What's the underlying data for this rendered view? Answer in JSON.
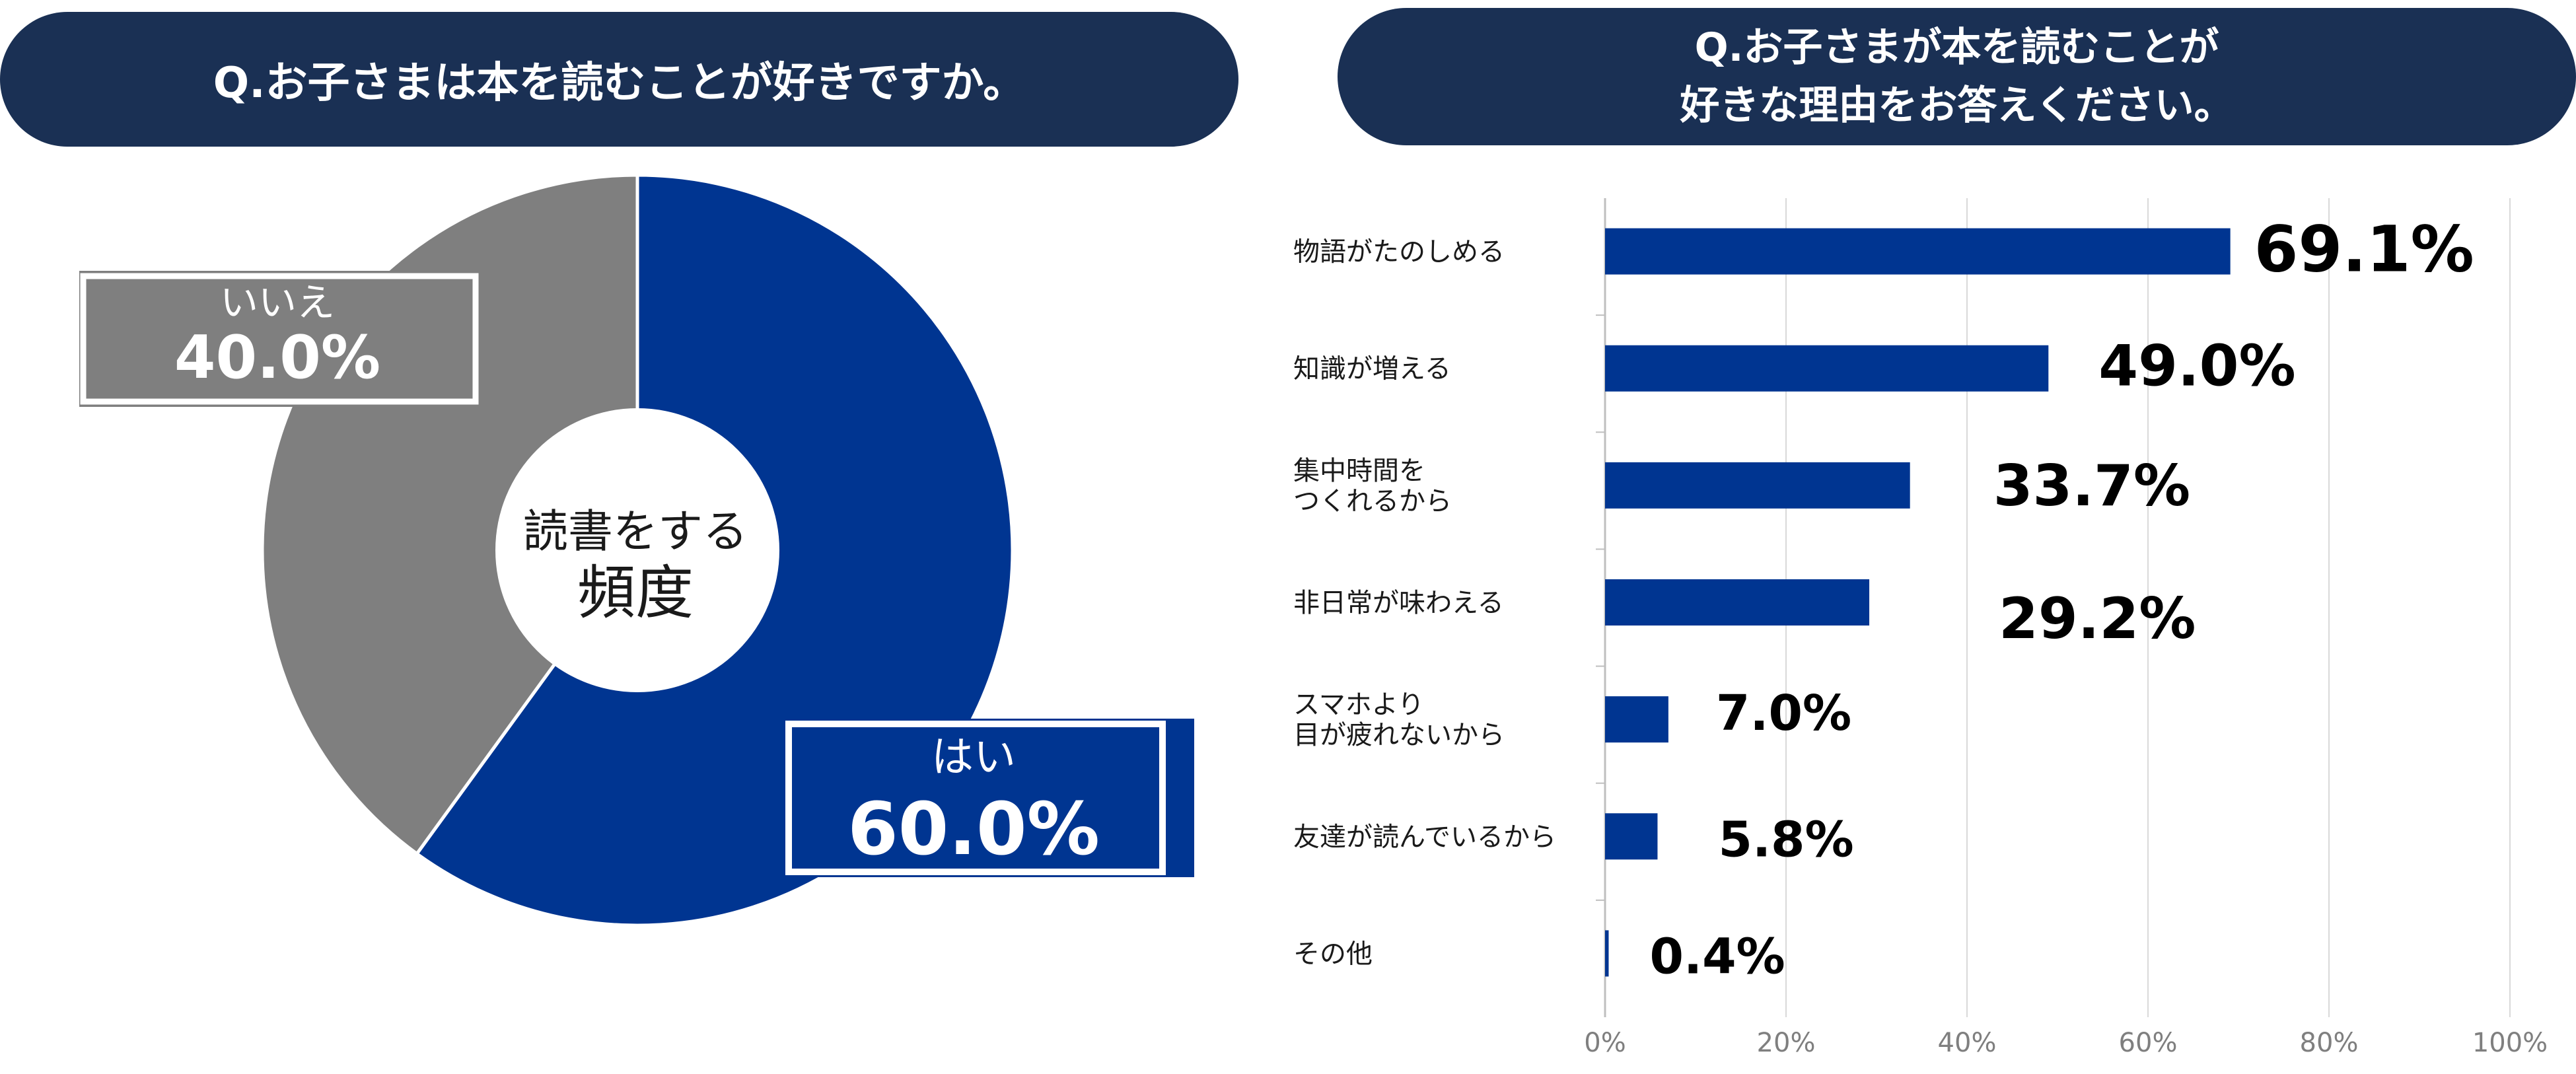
{
  "left_panel": {
    "title": "Q.お子さまは本を読むことが好きですか。",
    "center_label_line1": "読書をする",
    "center_label_line2": "頻度",
    "colors": {
      "yes": "#003591",
      "no": "#7f7f7f",
      "header_bg": "#1a3054"
    }
  },
  "right_panel": {
    "title_line1": "Q.お子さまが本を読むことが",
    "title_line2": "好きな理由をお答えください。",
    "bar_color": "#003591"
  },
  "chart_data": [
    {
      "type": "pie",
      "title": "Q.お子さまは本を読むことが好きですか。",
      "center_label": "読書をする頻度",
      "categories": [
        "はい",
        "いいえ"
      ],
      "values": [
        60.0,
        40.0
      ],
      "value_labels": [
        "60.0%",
        "40.0%"
      ],
      "colors": [
        "#003591",
        "#7f7f7f"
      ]
    },
    {
      "type": "bar",
      "orientation": "horizontal",
      "title": "Q.お子さまが本を読むことが好きな理由をお答えください。",
      "categories": [
        [
          "物語がたのしめる"
        ],
        [
          "知識が増える"
        ],
        [
          "集中時間を",
          "つくれるから"
        ],
        [
          "非日常が味わえる"
        ],
        [
          "スマホより",
          "目が疲れないから"
        ],
        [
          "友達が読んでいるから"
        ],
        [
          "その他"
        ]
      ],
      "values": [
        69.1,
        49.0,
        33.7,
        29.2,
        7.0,
        5.8,
        0.4
      ],
      "value_labels": [
        "69.1%",
        "49.0%",
        "33.7%",
        "29.2%",
        "7.0%",
        "5.8%",
        "0.4%"
      ],
      "xlim": [
        0,
        100
      ],
      "xticks": [
        0,
        20,
        40,
        60,
        80,
        100
      ],
      "xtick_labels": [
        "0%",
        "20%",
        "40%",
        "60%",
        "80%",
        "100%"
      ],
      "grid": true
    }
  ]
}
